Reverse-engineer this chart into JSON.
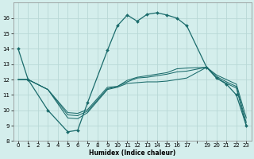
{
  "xlabel": "Humidex (Indice chaleur)",
  "background_color": "#d4eeec",
  "grid_color": "#b8d8d6",
  "line_color": "#1a6b6b",
  "xlim_min": -0.5,
  "xlim_max": 23.5,
  "ylim_min": 8,
  "ylim_max": 17,
  "yticks": [
    8,
    9,
    10,
    11,
    12,
    13,
    14,
    15,
    16
  ],
  "xtick_positions": [
    0,
    1,
    2,
    3,
    4,
    5,
    6,
    7,
    8,
    9,
    10,
    11,
    12,
    13,
    14,
    15,
    16,
    17,
    18,
    19,
    20,
    21,
    22,
    23
  ],
  "xtick_labels": [
    "0",
    "1",
    "2",
    "3",
    "4",
    "5",
    "6",
    "7",
    "8",
    "9",
    "10",
    "11",
    "12",
    "13",
    "14",
    "15",
    "16",
    "17",
    "",
    "19",
    "20",
    "21",
    "22",
    "23"
  ],
  "curve1_x": [
    0,
    1,
    3,
    5,
    6,
    7,
    9,
    10,
    11,
    12,
    13,
    14,
    15,
    16,
    17,
    19,
    20,
    21,
    22,
    23
  ],
  "curve1_y": [
    14.0,
    12.0,
    10.0,
    8.6,
    8.7,
    10.5,
    13.9,
    15.5,
    16.2,
    15.8,
    16.25,
    16.35,
    16.2,
    16.0,
    15.5,
    12.8,
    12.1,
    11.7,
    11.0,
    9.0
  ],
  "curve2_x": [
    0,
    1,
    3,
    5,
    6,
    7,
    9,
    10,
    11,
    12,
    13,
    14,
    15,
    16,
    17,
    19,
    20,
    21,
    22,
    23
  ],
  "curve2_y": [
    12.0,
    12.0,
    11.35,
    9.5,
    9.45,
    9.85,
    11.35,
    11.5,
    11.75,
    11.8,
    11.85,
    11.85,
    11.9,
    12.0,
    12.1,
    12.8,
    12.1,
    11.75,
    11.45,
    9.0
  ],
  "curve3_x": [
    0,
    1,
    3,
    5,
    6,
    7,
    9,
    10,
    11,
    12,
    13,
    14,
    15,
    16,
    17,
    19,
    20,
    21,
    22,
    23
  ],
  "curve3_y": [
    12.0,
    12.0,
    11.35,
    9.7,
    9.65,
    9.95,
    11.4,
    11.55,
    11.85,
    12.1,
    12.15,
    12.25,
    12.35,
    12.5,
    12.55,
    12.8,
    12.2,
    11.85,
    11.55,
    9.2
  ],
  "curve4_x": [
    0,
    1,
    3,
    5,
    6,
    7,
    9,
    10,
    11,
    12,
    13,
    14,
    15,
    16,
    17,
    19,
    20,
    21,
    22,
    23
  ],
  "curve4_y": [
    12.0,
    12.0,
    11.35,
    9.85,
    9.8,
    10.05,
    11.5,
    11.55,
    11.95,
    12.15,
    12.25,
    12.35,
    12.45,
    12.7,
    12.75,
    12.8,
    12.3,
    12.0,
    11.7,
    9.5
  ],
  "xlabel_fontsize": 5.5,
  "tick_fontsize": 5.0,
  "linewidth_main": 0.9,
  "linewidth_sub": 0.75,
  "marker_size": 2.0
}
